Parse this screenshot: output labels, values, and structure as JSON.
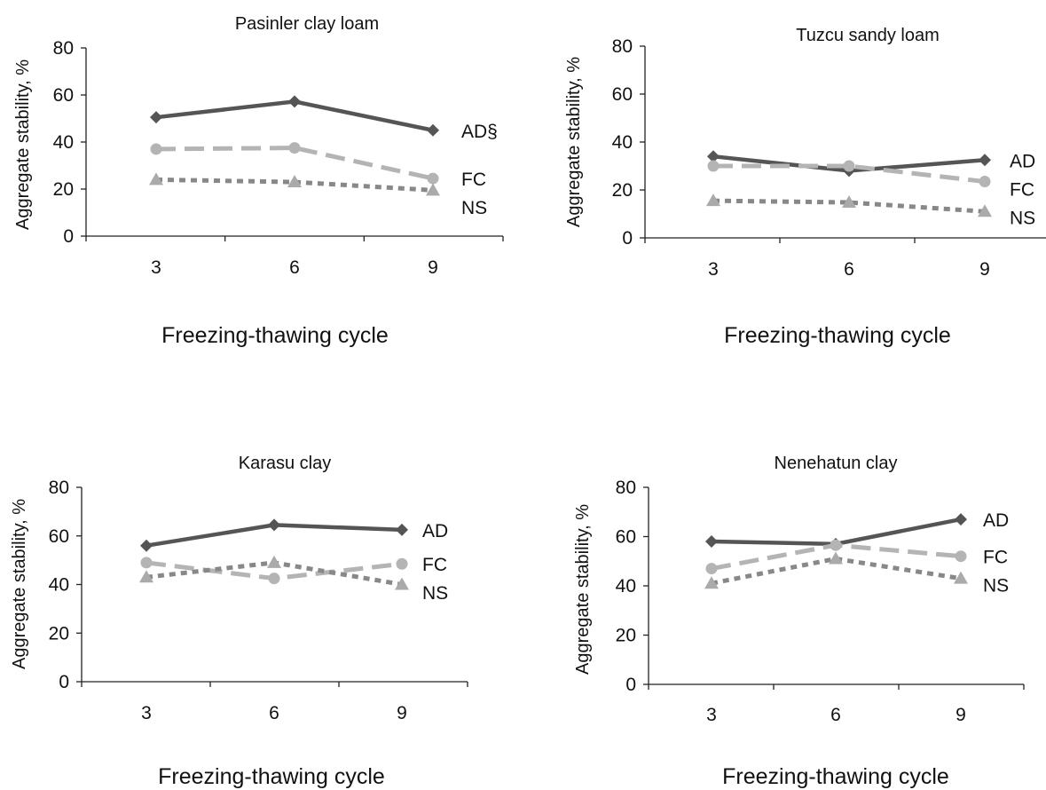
{
  "chart_data": [
    {
      "type": "line",
      "title": "Pasinler clay loam",
      "xlabel": "Freezing-thawing cycle",
      "ylabel": "Aggregate stability, %",
      "categories": [
        "3",
        "6",
        "9"
      ],
      "yticks": [
        "0",
        "20",
        "40",
        "60",
        "80"
      ],
      "ylim": [
        0,
        80
      ],
      "grid": false,
      "series": [
        {
          "name": "AD§",
          "values": [
            50.5,
            57.2,
            45
          ],
          "color": "#555555",
          "marker": "diamond",
          "dash": "solid"
        },
        {
          "name": "FC",
          "values": [
            37,
            37.5,
            24.5
          ],
          "color": "#b4b4b4",
          "marker": "circle",
          "dash": "long-dash"
        },
        {
          "name": "NS",
          "values": [
            24,
            23,
            19.5
          ],
          "color": "#888888",
          "marker": "triangle",
          "dash": "dotted"
        }
      ]
    },
    {
      "type": "line",
      "title": "Tuzcu sandy loam",
      "xlabel": "Freezing-thawing cycle",
      "ylabel": "Aggregate stability, %",
      "categories": [
        "3",
        "6",
        "9"
      ],
      "yticks": [
        "0",
        "20",
        "40",
        "60",
        "80"
      ],
      "ylim": [
        0,
        80
      ],
      "grid": false,
      "series": [
        {
          "name": "AD",
          "values": [
            34,
            28,
            32.5
          ],
          "color": "#555555",
          "marker": "diamond",
          "dash": "solid"
        },
        {
          "name": "FC",
          "values": [
            30,
            30,
            23.5
          ],
          "color": "#b4b4b4",
          "marker": "circle",
          "dash": "long-dash"
        },
        {
          "name": "NS",
          "values": [
            15.5,
            14.8,
            11
          ],
          "color": "#888888",
          "marker": "triangle",
          "dash": "dotted"
        }
      ]
    },
    {
      "type": "line",
      "title": "Karasu clay",
      "xlabel": "Freezing-thawing cycle",
      "ylabel": "Aggregate stability, %",
      "categories": [
        "3",
        "6",
        "9"
      ],
      "yticks": [
        "0",
        "20",
        "40",
        "60",
        "80"
      ],
      "ylim": [
        0,
        80
      ],
      "grid": false,
      "series": [
        {
          "name": "AD",
          "values": [
            56,
            64.5,
            62.5
          ],
          "color": "#555555",
          "marker": "diamond",
          "dash": "solid"
        },
        {
          "name": "FC",
          "values": [
            49,
            42.5,
            48.5
          ],
          "color": "#b4b4b4",
          "marker": "circle",
          "dash": "long-dash"
        },
        {
          "name": "NS",
          "values": [
            43,
            49,
            40
          ],
          "color": "#888888",
          "marker": "triangle",
          "dash": "dotted"
        }
      ]
    },
    {
      "type": "line",
      "title": "Nenehatun clay",
      "xlabel": "Freezing-thawing cycle",
      "ylabel": "Aggregate stability, %",
      "categories": [
        "3",
        "6",
        "9"
      ],
      "yticks": [
        "0",
        "20",
        "40",
        "60",
        "80"
      ],
      "ylim": [
        0,
        80
      ],
      "grid": false,
      "series": [
        {
          "name": "AD",
          "values": [
            58,
            57,
            67
          ],
          "color": "#555555",
          "marker": "diamond",
          "dash": "solid"
        },
        {
          "name": "FC",
          "values": [
            47,
            56.5,
            52
          ],
          "color": "#b4b4b4",
          "marker": "circle",
          "dash": "long-dash"
        },
        {
          "name": "NS",
          "values": [
            41,
            51,
            43
          ],
          "color": "#888888",
          "marker": "triangle",
          "dash": "dotted"
        }
      ]
    }
  ]
}
